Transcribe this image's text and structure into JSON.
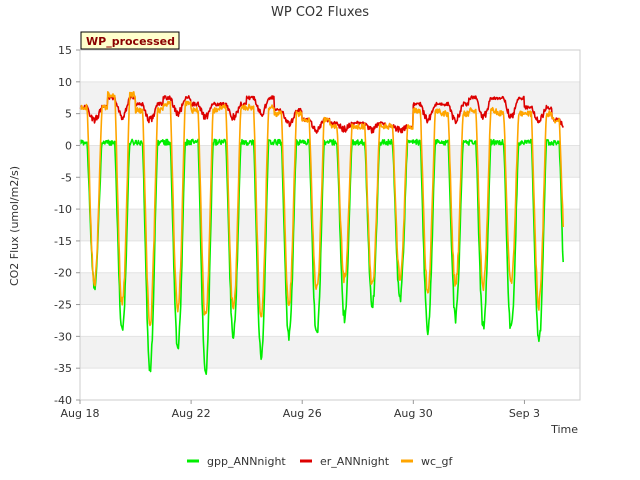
{
  "chart_data": {
    "type": "line",
    "title": "WP CO2 Fluxes",
    "badge": "WP_processed",
    "xlabel": "Time",
    "ylabel": "CO2 Flux (umol/m2/s)",
    "xlim": [
      "2023-08-18",
      "2023-09-05"
    ],
    "ylim": [
      -40,
      15
    ],
    "yticks": [
      15,
      10,
      5,
      0,
      -5,
      -10,
      -15,
      -20,
      -25,
      -30,
      -35,
      -40
    ],
    "xticks": [
      {
        "date": "2023-08-18",
        "label": "Aug 18"
      },
      {
        "date": "2023-08-22",
        "label": "Aug 22"
      },
      {
        "date": "2023-08-26",
        "label": "Aug 26"
      },
      {
        "date": "2023-08-30",
        "label": "Aug 30"
      },
      {
        "date": "2023-09-03",
        "label": "Sep 3"
      }
    ],
    "grid": true,
    "legend_position": "bottom",
    "series": [
      {
        "name": "gpp_ANNnight",
        "color": "#00ee00",
        "daily": [
          {
            "date": "2023-08-18",
            "night": 0.5,
            "min": -22.0
          },
          {
            "date": "2023-08-19",
            "night": 0.5,
            "min": -29.0
          },
          {
            "date": "2023-08-20",
            "night": 0.5,
            "min": -35.0
          },
          {
            "date": "2023-08-21",
            "night": 0.5,
            "min": -32.0
          },
          {
            "date": "2023-08-22",
            "night": 0.5,
            "min": -35.5
          },
          {
            "date": "2023-08-23",
            "night": 0.5,
            "min": -30.0
          },
          {
            "date": "2023-08-24",
            "night": 0.5,
            "min": -33.0
          },
          {
            "date": "2023-08-25",
            "night": 0.5,
            "min": -30.0
          },
          {
            "date": "2023-08-26",
            "night": 0.5,
            "min": -30.0
          },
          {
            "date": "2023-08-27",
            "night": 0.5,
            "min": -27.0
          },
          {
            "date": "2023-08-28",
            "night": 0.5,
            "min": -25.0
          },
          {
            "date": "2023-08-29",
            "night": 0.5,
            "min": -24.0
          },
          {
            "date": "2023-08-30",
            "night": 0.5,
            "min": -29.0
          },
          {
            "date": "2023-08-31",
            "night": 0.5,
            "min": -27.0
          },
          {
            "date": "2023-09-01",
            "night": 0.5,
            "min": -28.5
          },
          {
            "date": "2023-09-02",
            "night": 0.5,
            "min": -29.0
          },
          {
            "date": "2023-09-03",
            "night": 0.5,
            "min": -31.0
          },
          {
            "date": "2023-09-04",
            "night": 0.5,
            "min": -28.0
          }
        ]
      },
      {
        "name": "er_ANNnight",
        "color": "#dd0000",
        "daily": [
          {
            "date": "2023-08-18",
            "night": 6.0,
            "min": 4.0
          },
          {
            "date": "2023-08-19",
            "night": 7.5,
            "min": 4.5
          },
          {
            "date": "2023-08-20",
            "night": 6.5,
            "min": 4.0
          },
          {
            "date": "2023-08-21",
            "night": 7.5,
            "min": 5.0
          },
          {
            "date": "2023-08-22",
            "night": 6.5,
            "min": 4.5
          },
          {
            "date": "2023-08-23",
            "night": 6.5,
            "min": 4.5
          },
          {
            "date": "2023-08-24",
            "night": 7.5,
            "min": 5.0
          },
          {
            "date": "2023-08-25",
            "night": 5.5,
            "min": 3.5
          },
          {
            "date": "2023-08-26",
            "night": 4.0,
            "min": 2.5
          },
          {
            "date": "2023-08-27",
            "night": 3.5,
            "min": 2.5
          },
          {
            "date": "2023-08-28",
            "night": 3.5,
            "min": 2.5
          },
          {
            "date": "2023-08-29",
            "night": 3.0,
            "min": 2.5
          },
          {
            "date": "2023-08-30",
            "night": 6.5,
            "min": 4.0
          },
          {
            "date": "2023-08-31",
            "night": 6.5,
            "min": 4.0
          },
          {
            "date": "2023-09-01",
            "night": 7.5,
            "min": 4.5
          },
          {
            "date": "2023-09-02",
            "night": 7.5,
            "min": 4.5
          },
          {
            "date": "2023-09-03",
            "night": 6.0,
            "min": 4.0
          },
          {
            "date": "2023-09-04",
            "night": 4.0,
            "min": 2.5
          }
        ]
      },
      {
        "name": "wc_gf",
        "color": "#ffa500",
        "daily": [
          {
            "date": "2023-08-18",
            "night": 6.0,
            "min": -22.0
          },
          {
            "date": "2023-08-19",
            "night": 8.0,
            "min": -25.0
          },
          {
            "date": "2023-08-20",
            "night": 5.5,
            "min": -28.0
          },
          {
            "date": "2023-08-21",
            "night": 6.5,
            "min": -26.0
          },
          {
            "date": "2023-08-22",
            "night": 5.5,
            "min": -27.0
          },
          {
            "date": "2023-08-23",
            "night": 6.0,
            "min": -26.0
          },
          {
            "date": "2023-08-24",
            "night": 6.0,
            "min": -27.0
          },
          {
            "date": "2023-08-25",
            "night": 5.0,
            "min": -25.0
          },
          {
            "date": "2023-08-26",
            "night": 4.0,
            "min": -23.0
          },
          {
            "date": "2023-08-27",
            "night": 3.0,
            "min": -21.0
          },
          {
            "date": "2023-08-28",
            "night": 3.0,
            "min": -22.0
          },
          {
            "date": "2023-08-29",
            "night": 3.0,
            "min": -21.0
          },
          {
            "date": "2023-08-30",
            "night": 5.5,
            "min": -23.0
          },
          {
            "date": "2023-08-31",
            "night": 5.0,
            "min": -22.0
          },
          {
            "date": "2023-09-01",
            "night": 5.5,
            "min": -22.0
          },
          {
            "date": "2023-09-02",
            "night": 5.0,
            "min": -22.0
          },
          {
            "date": "2023-09-03",
            "night": 5.0,
            "min": -25.0
          },
          {
            "date": "2023-09-04",
            "night": 4.0,
            "min": -20.0
          }
        ]
      }
    ]
  }
}
